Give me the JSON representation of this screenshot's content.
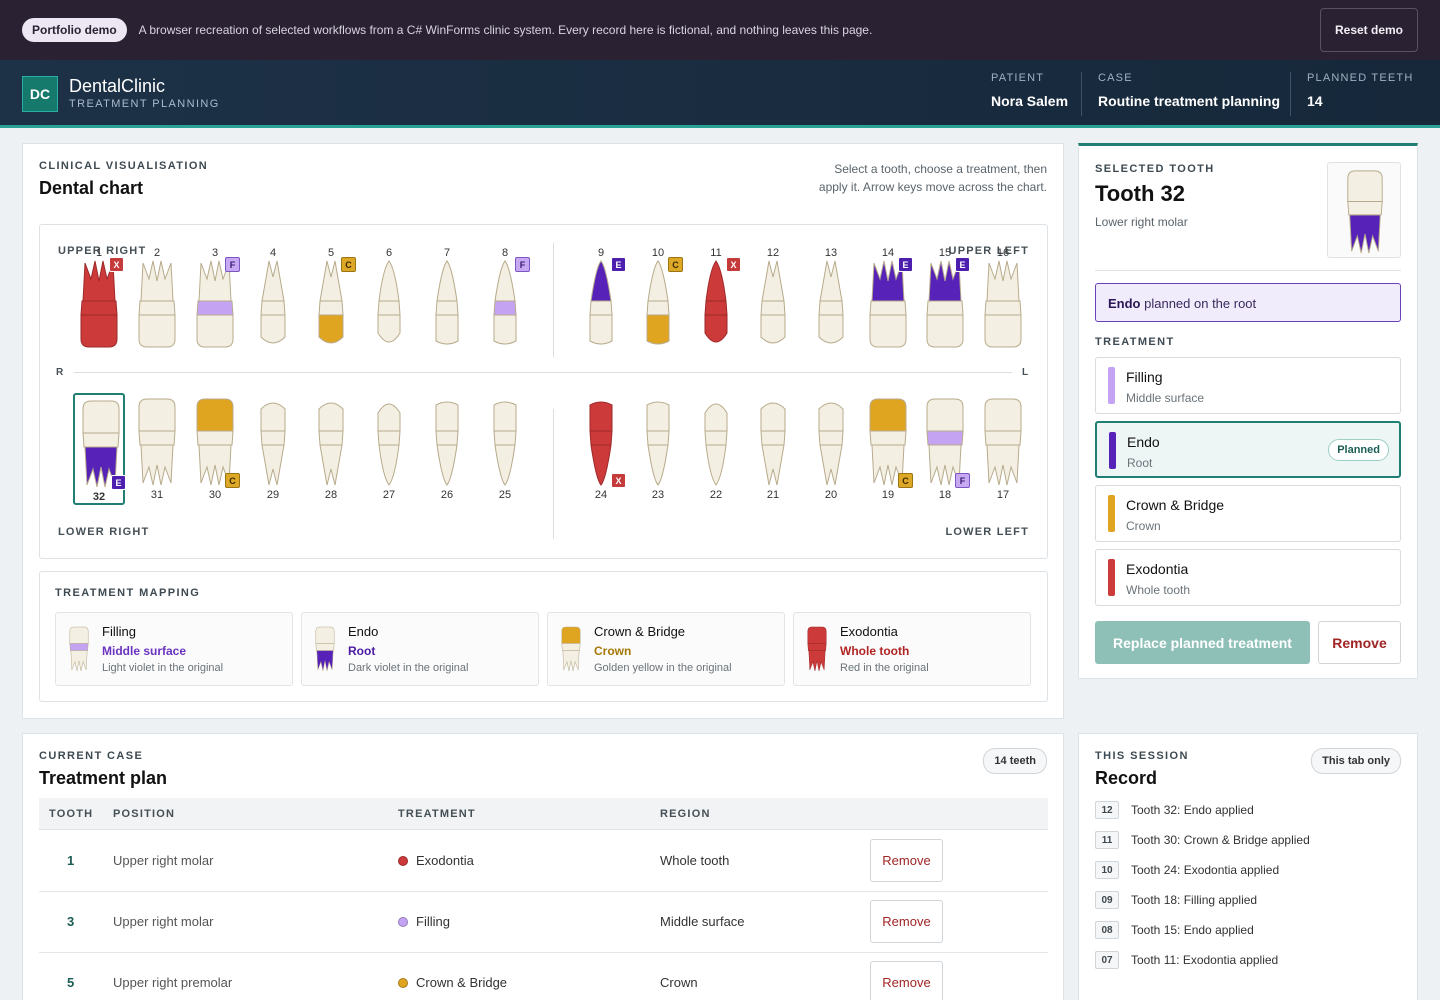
{
  "banner": {
    "pill": "Portfolio demo",
    "text": "A browser recreation of selected workflows from a C# WinForms clinic system. Every record here is fictional, and nothing leaves this page.",
    "reset": "Reset demo"
  },
  "header": {
    "logo": "DC",
    "title": "DentalClinic",
    "subtitle": "TREATMENT PLANNING",
    "patient_label": "PATIENT",
    "patient": "Nora Salem",
    "case_label": "CASE",
    "case": "Routine treatment planning",
    "planned_label": "PLANNED TEETH",
    "planned": "14"
  },
  "colors": {
    "filling": "#c4a4f2",
    "endo": "#5722b8",
    "crown": "#dfa521",
    "exo": "#cc3a3a",
    "accent": "#1f7f72"
  },
  "chart": {
    "eyebrow": "CLINICAL VISUALISATION",
    "title": "Dental chart",
    "hint": "Select a tooth, choose a treatment, then apply it. Arrow keys move across the chart.",
    "upper_right": "UPPER RIGHT",
    "upper_left": "UPPER LEFT",
    "lower_right": "LOWER RIGHT",
    "lower_left": "LOWER LEFT",
    "r": "R",
    "l": "L",
    "upper_teeth": [
      {
        "n": "1",
        "shape": "molar",
        "treat": "exo",
        "badge": "X"
      },
      {
        "n": "2",
        "shape": "molar",
        "treat": "",
        "badge": ""
      },
      {
        "n": "3",
        "shape": "molar",
        "treat": "filling",
        "badge": "F"
      },
      {
        "n": "4",
        "shape": "premolar",
        "treat": "",
        "badge": ""
      },
      {
        "n": "5",
        "shape": "premolar",
        "treat": "crown",
        "badge": "C"
      },
      {
        "n": "6",
        "shape": "canine",
        "treat": "",
        "badge": ""
      },
      {
        "n": "7",
        "shape": "incisor",
        "treat": "",
        "badge": ""
      },
      {
        "n": "8",
        "shape": "incisor",
        "treat": "filling",
        "badge": "F"
      },
      {
        "n": "9",
        "shape": "incisor",
        "treat": "endo",
        "badge": "E"
      },
      {
        "n": "10",
        "shape": "incisor",
        "treat": "crown",
        "badge": "C"
      },
      {
        "n": "11",
        "shape": "canine",
        "treat": "exo",
        "badge": "X"
      },
      {
        "n": "12",
        "shape": "premolar",
        "treat": "",
        "badge": ""
      },
      {
        "n": "13",
        "shape": "premolar",
        "treat": "",
        "badge": ""
      },
      {
        "n": "14",
        "shape": "molar",
        "treat": "endo",
        "badge": "E"
      },
      {
        "n": "15",
        "shape": "molar",
        "treat": "endo",
        "badge": "E"
      },
      {
        "n": "16",
        "shape": "molar",
        "treat": "",
        "badge": ""
      }
    ],
    "lower_teeth": [
      {
        "n": "32",
        "shape": "molar",
        "treat": "endo",
        "badge": "E",
        "selected": true
      },
      {
        "n": "31",
        "shape": "molar",
        "treat": "",
        "badge": ""
      },
      {
        "n": "30",
        "shape": "molar",
        "treat": "crown",
        "badge": "C"
      },
      {
        "n": "29",
        "shape": "premolar",
        "treat": "",
        "badge": ""
      },
      {
        "n": "28",
        "shape": "premolar",
        "treat": "",
        "badge": ""
      },
      {
        "n": "27",
        "shape": "canine",
        "treat": "",
        "badge": ""
      },
      {
        "n": "26",
        "shape": "incisor",
        "treat": "",
        "badge": ""
      },
      {
        "n": "25",
        "shape": "incisor",
        "treat": "",
        "badge": ""
      },
      {
        "n": "24",
        "shape": "incisor",
        "treat": "exo",
        "badge": "X"
      },
      {
        "n": "23",
        "shape": "incisor",
        "treat": "",
        "badge": ""
      },
      {
        "n": "22",
        "shape": "canine",
        "treat": "",
        "badge": ""
      },
      {
        "n": "21",
        "shape": "premolar",
        "treat": "",
        "badge": ""
      },
      {
        "n": "20",
        "shape": "premolar",
        "treat": "",
        "badge": ""
      },
      {
        "n": "19",
        "shape": "molar",
        "treat": "crown",
        "badge": "C"
      },
      {
        "n": "18",
        "shape": "molar",
        "treat": "filling",
        "badge": "F"
      },
      {
        "n": "17",
        "shape": "molar",
        "treat": "",
        "badge": ""
      }
    ]
  },
  "mapping": {
    "title": "TREATMENT MAPPING",
    "items": [
      {
        "name": "Filling",
        "region": "Middle surface",
        "note": "Light violet in the original",
        "treat": "filling",
        "region_color": "#6b34c0"
      },
      {
        "name": "Endo",
        "region": "Root",
        "note": "Dark violet in the original",
        "treat": "endo",
        "region_color": "#4a1aa3"
      },
      {
        "name": "Crown & Bridge",
        "region": "Crown",
        "note": "Golden yellow in the original",
        "treat": "crown",
        "region_color": "#a37807"
      },
      {
        "name": "Exodontia",
        "region": "Whole tooth",
        "note": "Red in the original",
        "treat": "exo",
        "region_color": "#b02424"
      }
    ]
  },
  "selected": {
    "eyebrow": "SELECTED TOOTH",
    "title": "Tooth 32",
    "subtitle": "Lower right molar",
    "planned_strong": "Endo",
    "planned_rest": " planned on the root",
    "treatment_label": "TREATMENT",
    "options": [
      {
        "name": "Filling",
        "region": "Middle surface",
        "treat": "filling",
        "badge": ""
      },
      {
        "name": "Endo",
        "region": "Root",
        "treat": "endo",
        "badge": "Planned",
        "active": true
      },
      {
        "name": "Crown & Bridge",
        "region": "Crown",
        "treat": "crown",
        "badge": ""
      },
      {
        "name": "Exodontia",
        "region": "Whole tooth",
        "treat": "exo",
        "badge": ""
      }
    ],
    "replace": "Replace planned treatment",
    "remove": "Remove"
  },
  "plan": {
    "eyebrow": "CURRENT CASE",
    "title": "Treatment plan",
    "count": "14 teeth",
    "cols": [
      "TOOTH",
      "POSITION",
      "TREATMENT",
      "REGION"
    ],
    "rows": [
      {
        "tooth": "1",
        "position": "Upper right molar",
        "treatment": "Exodontia",
        "treat": "exo",
        "region": "Whole tooth",
        "action": "Remove"
      },
      {
        "tooth": "3",
        "position": "Upper right molar",
        "treatment": "Filling",
        "treat": "filling",
        "region": "Middle surface",
        "action": "Remove"
      },
      {
        "tooth": "5",
        "position": "Upper right premolar",
        "treatment": "Crown & Bridge",
        "treat": "crown",
        "region": "Crown",
        "action": "Remove"
      }
    ]
  },
  "record": {
    "eyebrow": "THIS SESSION",
    "title": "Record",
    "pill": "This tab only",
    "items": [
      {
        "num": "12",
        "text": "Tooth 32: Endo applied"
      },
      {
        "num": "11",
        "text": "Tooth 30: Crown & Bridge applied"
      },
      {
        "num": "10",
        "text": "Tooth 24: Exodontia applied"
      },
      {
        "num": "09",
        "text": "Tooth 18: Filling applied"
      },
      {
        "num": "08",
        "text": "Tooth 15: Endo applied"
      },
      {
        "num": "07",
        "text": "Tooth 11: Exodontia applied"
      }
    ]
  }
}
